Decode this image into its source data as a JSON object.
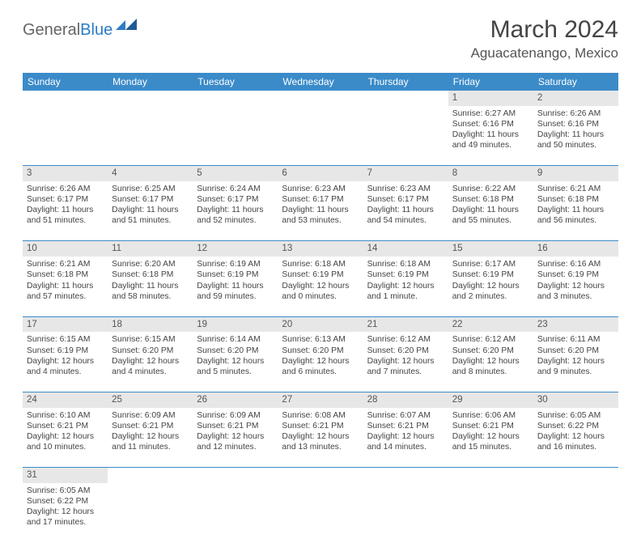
{
  "logo": {
    "part1": "General",
    "part2": "Blue"
  },
  "title": "March 2024",
  "location": "Aguacatenango, Mexico",
  "day_headers": [
    "Sunday",
    "Monday",
    "Tuesday",
    "Wednesday",
    "Thursday",
    "Friday",
    "Saturday"
  ],
  "colors": {
    "header_bg": "#3b8bc9",
    "daynum_bg": "#e7e7e7",
    "accent": "#2b7cc4"
  },
  "weeks": [
    [
      null,
      null,
      null,
      null,
      null,
      {
        "n": "1",
        "sunrise": "Sunrise: 6:27 AM",
        "sunset": "Sunset: 6:16 PM",
        "daylight": "Daylight: 11 hours and 49 minutes."
      },
      {
        "n": "2",
        "sunrise": "Sunrise: 6:26 AM",
        "sunset": "Sunset: 6:16 PM",
        "daylight": "Daylight: 11 hours and 50 minutes."
      }
    ],
    [
      {
        "n": "3",
        "sunrise": "Sunrise: 6:26 AM",
        "sunset": "Sunset: 6:17 PM",
        "daylight": "Daylight: 11 hours and 51 minutes."
      },
      {
        "n": "4",
        "sunrise": "Sunrise: 6:25 AM",
        "sunset": "Sunset: 6:17 PM",
        "daylight": "Daylight: 11 hours and 51 minutes."
      },
      {
        "n": "5",
        "sunrise": "Sunrise: 6:24 AM",
        "sunset": "Sunset: 6:17 PM",
        "daylight": "Daylight: 11 hours and 52 minutes."
      },
      {
        "n": "6",
        "sunrise": "Sunrise: 6:23 AM",
        "sunset": "Sunset: 6:17 PM",
        "daylight": "Daylight: 11 hours and 53 minutes."
      },
      {
        "n": "7",
        "sunrise": "Sunrise: 6:23 AM",
        "sunset": "Sunset: 6:17 PM",
        "daylight": "Daylight: 11 hours and 54 minutes."
      },
      {
        "n": "8",
        "sunrise": "Sunrise: 6:22 AM",
        "sunset": "Sunset: 6:18 PM",
        "daylight": "Daylight: 11 hours and 55 minutes."
      },
      {
        "n": "9",
        "sunrise": "Sunrise: 6:21 AM",
        "sunset": "Sunset: 6:18 PM",
        "daylight": "Daylight: 11 hours and 56 minutes."
      }
    ],
    [
      {
        "n": "10",
        "sunrise": "Sunrise: 6:21 AM",
        "sunset": "Sunset: 6:18 PM",
        "daylight": "Daylight: 11 hours and 57 minutes."
      },
      {
        "n": "11",
        "sunrise": "Sunrise: 6:20 AM",
        "sunset": "Sunset: 6:18 PM",
        "daylight": "Daylight: 11 hours and 58 minutes."
      },
      {
        "n": "12",
        "sunrise": "Sunrise: 6:19 AM",
        "sunset": "Sunset: 6:19 PM",
        "daylight": "Daylight: 11 hours and 59 minutes."
      },
      {
        "n": "13",
        "sunrise": "Sunrise: 6:18 AM",
        "sunset": "Sunset: 6:19 PM",
        "daylight": "Daylight: 12 hours and 0 minutes."
      },
      {
        "n": "14",
        "sunrise": "Sunrise: 6:18 AM",
        "sunset": "Sunset: 6:19 PM",
        "daylight": "Daylight: 12 hours and 1 minute."
      },
      {
        "n": "15",
        "sunrise": "Sunrise: 6:17 AM",
        "sunset": "Sunset: 6:19 PM",
        "daylight": "Daylight: 12 hours and 2 minutes."
      },
      {
        "n": "16",
        "sunrise": "Sunrise: 6:16 AM",
        "sunset": "Sunset: 6:19 PM",
        "daylight": "Daylight: 12 hours and 3 minutes."
      }
    ],
    [
      {
        "n": "17",
        "sunrise": "Sunrise: 6:15 AM",
        "sunset": "Sunset: 6:19 PM",
        "daylight": "Daylight: 12 hours and 4 minutes."
      },
      {
        "n": "18",
        "sunrise": "Sunrise: 6:15 AM",
        "sunset": "Sunset: 6:20 PM",
        "daylight": "Daylight: 12 hours and 4 minutes."
      },
      {
        "n": "19",
        "sunrise": "Sunrise: 6:14 AM",
        "sunset": "Sunset: 6:20 PM",
        "daylight": "Daylight: 12 hours and 5 minutes."
      },
      {
        "n": "20",
        "sunrise": "Sunrise: 6:13 AM",
        "sunset": "Sunset: 6:20 PM",
        "daylight": "Daylight: 12 hours and 6 minutes."
      },
      {
        "n": "21",
        "sunrise": "Sunrise: 6:12 AM",
        "sunset": "Sunset: 6:20 PM",
        "daylight": "Daylight: 12 hours and 7 minutes."
      },
      {
        "n": "22",
        "sunrise": "Sunrise: 6:12 AM",
        "sunset": "Sunset: 6:20 PM",
        "daylight": "Daylight: 12 hours and 8 minutes."
      },
      {
        "n": "23",
        "sunrise": "Sunrise: 6:11 AM",
        "sunset": "Sunset: 6:20 PM",
        "daylight": "Daylight: 12 hours and 9 minutes."
      }
    ],
    [
      {
        "n": "24",
        "sunrise": "Sunrise: 6:10 AM",
        "sunset": "Sunset: 6:21 PM",
        "daylight": "Daylight: 12 hours and 10 minutes."
      },
      {
        "n": "25",
        "sunrise": "Sunrise: 6:09 AM",
        "sunset": "Sunset: 6:21 PM",
        "daylight": "Daylight: 12 hours and 11 minutes."
      },
      {
        "n": "26",
        "sunrise": "Sunrise: 6:09 AM",
        "sunset": "Sunset: 6:21 PM",
        "daylight": "Daylight: 12 hours and 12 minutes."
      },
      {
        "n": "27",
        "sunrise": "Sunrise: 6:08 AM",
        "sunset": "Sunset: 6:21 PM",
        "daylight": "Daylight: 12 hours and 13 minutes."
      },
      {
        "n": "28",
        "sunrise": "Sunrise: 6:07 AM",
        "sunset": "Sunset: 6:21 PM",
        "daylight": "Daylight: 12 hours and 14 minutes."
      },
      {
        "n": "29",
        "sunrise": "Sunrise: 6:06 AM",
        "sunset": "Sunset: 6:21 PM",
        "daylight": "Daylight: 12 hours and 15 minutes."
      },
      {
        "n": "30",
        "sunrise": "Sunrise: 6:05 AM",
        "sunset": "Sunset: 6:22 PM",
        "daylight": "Daylight: 12 hours and 16 minutes."
      }
    ],
    [
      {
        "n": "31",
        "sunrise": "Sunrise: 6:05 AM",
        "sunset": "Sunset: 6:22 PM",
        "daylight": "Daylight: 12 hours and 17 minutes."
      },
      null,
      null,
      null,
      null,
      null,
      null
    ]
  ]
}
